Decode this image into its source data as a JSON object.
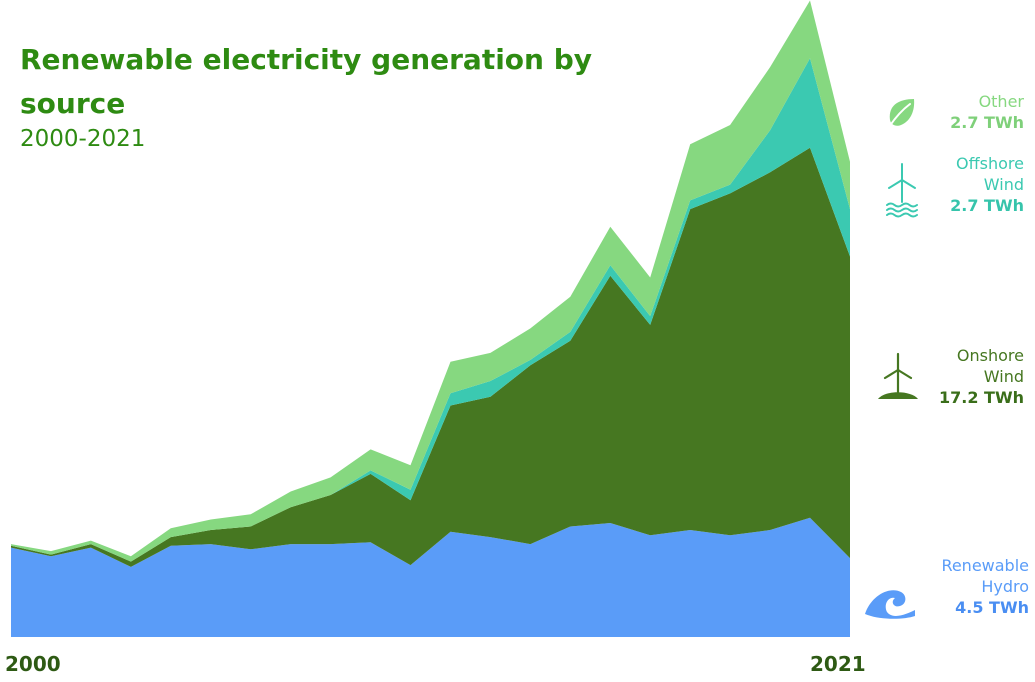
{
  "title": "Renewable electricity generation by source",
  "subtitle": "2000-2021",
  "x_start_label": "2000",
  "x_end_label": "2021",
  "legend": [
    {
      "line1": "Other",
      "line2": "",
      "value": "2.7 TWh",
      "color": "#86d880",
      "value_color": "#7fd07a",
      "icon": "leaf-icon"
    },
    {
      "line1": "Offshore",
      "line2": "Wind",
      "value": "2.7 TWh",
      "color": "#3bc9b1",
      "value_color": "#36c4ab",
      "icon": "offshore-wind-turbine-icon"
    },
    {
      "line1": "Onshore",
      "line2": "Wind",
      "value": "17.2 TWh",
      "color": "#467721",
      "value_color": "#3a6e1a",
      "icon": "onshore-wind-turbine-icon"
    },
    {
      "line1": "Renewable",
      "line2": "Hydro",
      "value": "4.5 TWh",
      "color": "#5a9cf8",
      "value_color": "#4a8ef2",
      "icon": "wave-icon"
    }
  ],
  "chart_data": {
    "type": "area",
    "stacked": true,
    "x": [
      2000,
      2001,
      2002,
      2003,
      2004,
      2005,
      2006,
      2007,
      2008,
      2009,
      2010,
      2011,
      2012,
      2013,
      2014,
      2015,
      2016,
      2017,
      2018,
      2019,
      2020,
      2021
    ],
    "series": [
      {
        "name": "Renewable Hydro",
        "color": "#5a9cf8",
        "values": [
          5.1,
          4.6,
          5.1,
          4.0,
          5.2,
          5.3,
          5.0,
          5.3,
          5.3,
          5.4,
          4.1,
          6.0,
          5.7,
          5.3,
          6.3,
          6.5,
          5.8,
          6.1,
          5.8,
          6.1,
          6.8,
          4.5
        ]
      },
      {
        "name": "Onshore Wind",
        "color": "#467721",
        "values": [
          0.1,
          0.1,
          0.2,
          0.3,
          0.5,
          0.8,
          1.3,
          2.1,
          2.8,
          3.9,
          3.7,
          7.2,
          8.0,
          10.2,
          10.6,
          14.1,
          12.0,
          18.3,
          19.5,
          20.4,
          21.1,
          17.2
        ]
      },
      {
        "name": "Offshore Wind",
        "color": "#3bc9b1",
        "values": [
          0,
          0,
          0,
          0,
          0,
          0,
          0,
          0,
          0,
          0.2,
          0.6,
          0.7,
          0.9,
          0.3,
          0.5,
          0.6,
          0.5,
          0.5,
          0.5,
          2.4,
          5.1,
          2.7
        ]
      },
      {
        "name": "Other",
        "color": "#86d880",
        "values": [
          0.1,
          0.2,
          0.2,
          0.3,
          0.5,
          0.6,
          0.7,
          0.9,
          1.0,
          1.2,
          1.4,
          1.8,
          1.6,
          1.8,
          2.0,
          2.2,
          2.2,
          3.2,
          3.4,
          3.6,
          3.3,
          2.7
        ]
      }
    ],
    "ylim": [
      0,
      35.7
    ],
    "grid": false,
    "legend_position": "right"
  }
}
